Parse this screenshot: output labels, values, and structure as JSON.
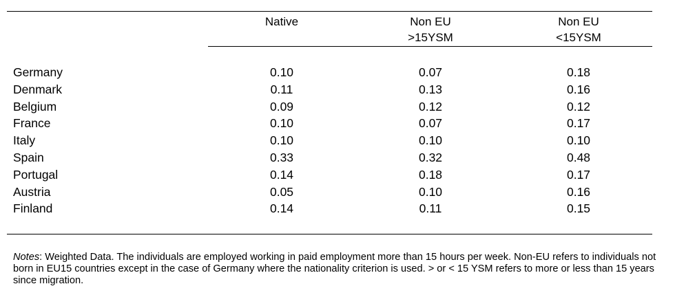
{
  "table": {
    "columns": [
      "Native",
      "Non EU >15YSM",
      "Non EU <15YSM"
    ],
    "headers": {
      "native": "Native",
      "non_eu_old_line1": "Non EU",
      "non_eu_old_line2": ">15YSM",
      "non_eu_new_line1": "Non EU",
      "non_eu_new_line2": "<15YSM"
    },
    "rows": [
      {
        "country": "Germany",
        "native": "0.10",
        "non_eu_old": "0.07",
        "non_eu_new": "0.18"
      },
      {
        "country": "Denmark",
        "native": "0.11",
        "non_eu_old": "0.13",
        "non_eu_new": "0.16"
      },
      {
        "country": "Belgium",
        "native": "0.09",
        "non_eu_old": "0.12",
        "non_eu_new": "0.12"
      },
      {
        "country": "France",
        "native": "0.10",
        "non_eu_old": "0.07",
        "non_eu_new": "0.17"
      },
      {
        "country": "Italy",
        "native": "0.10",
        "non_eu_old": "0.10",
        "non_eu_new": "0.10"
      },
      {
        "country": "Spain",
        "native": "0.33",
        "non_eu_old": "0.32",
        "non_eu_new": "0.48"
      },
      {
        "country": "Portugal",
        "native": "0.14",
        "non_eu_old": "0.18",
        "non_eu_new": "0.17"
      },
      {
        "country": "Austria",
        "native": "0.05",
        "non_eu_old": "0.10",
        "non_eu_new": "0.16"
      },
      {
        "country": "Finland",
        "native": "0.14",
        "non_eu_old": "0.11",
        "non_eu_new": "0.15"
      }
    ]
  },
  "notes": {
    "label": "Notes",
    "text": ": Weighted Data. The individuals are employed working in paid employment more than 15 hours per week. Non-EU refers to individuals not born in EU15 countries except in the case of Germany where the nationality criterion is used. > or < 15 YSM refers to more or less than 15 years since migration."
  }
}
